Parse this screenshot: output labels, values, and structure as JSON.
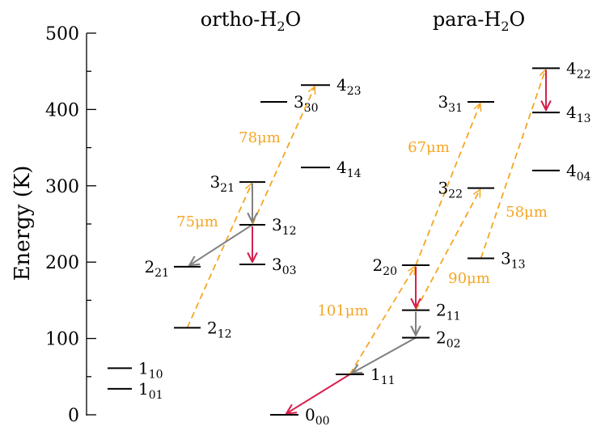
{
  "colors": {
    "radiative": "#f5a623",
    "red": "#d6204e",
    "gray": "#808080",
    "level": "#000000"
  },
  "axis": {
    "ylabel": "Energy (K)",
    "ticks": [
      {
        "value": 0,
        "label": "0"
      },
      {
        "value": 100,
        "label": "100"
      },
      {
        "value": 200,
        "label": "200"
      },
      {
        "value": 300,
        "label": "300"
      },
      {
        "value": 400,
        "label": "400"
      },
      {
        "value": 500,
        "label": "500"
      }
    ]
  },
  "titles": {
    "ortho": {
      "base": "ortho-H",
      "sub": "2",
      "end": "O"
    },
    "para": {
      "base": "para-H",
      "sub": "2",
      "end": "O"
    }
  },
  "levels": [
    {
      "id": "o110",
      "main": "1",
      "sub": "10",
      "energy": 61
    },
    {
      "id": "o101",
      "main": "1",
      "sub": "01",
      "energy": 34
    },
    {
      "id": "o221",
      "main": "2",
      "sub": "21",
      "energy": 194
    },
    {
      "id": "o212",
      "main": "2",
      "sub": "12",
      "energy": 114
    },
    {
      "id": "o321",
      "main": "3",
      "sub": "21",
      "energy": 305
    },
    {
      "id": "o312",
      "main": "3",
      "sub": "12",
      "energy": 249
    },
    {
      "id": "o303",
      "main": "3",
      "sub": "03",
      "energy": 197
    },
    {
      "id": "o330",
      "main": "3",
      "sub": "30",
      "energy": 410
    },
    {
      "id": "o423",
      "main": "4",
      "sub": "23",
      "energy": 432
    },
    {
      "id": "o414",
      "main": "4",
      "sub": "14",
      "energy": 324
    },
    {
      "id": "p000",
      "main": "0",
      "sub": "00",
      "energy": 0
    },
    {
      "id": "p111",
      "main": "1",
      "sub": "11",
      "energy": 53
    },
    {
      "id": "p202",
      "main": "2",
      "sub": "02",
      "energy": 101
    },
    {
      "id": "p211",
      "main": "2",
      "sub": "11",
      "energy": 137
    },
    {
      "id": "p220",
      "main": "2",
      "sub": "20",
      "energy": 196
    },
    {
      "id": "p322",
      "main": "3",
      "sub": "22",
      "energy": 297
    },
    {
      "id": "p331",
      "main": "3",
      "sub": "31",
      "energy": 410
    },
    {
      "id": "p313",
      "main": "3",
      "sub": "13",
      "energy": 205
    },
    {
      "id": "p422",
      "main": "4",
      "sub": "22",
      "energy": 454
    },
    {
      "id": "p413",
      "main": "4",
      "sub": "13",
      "energy": 396
    },
    {
      "id": "p404",
      "main": "4",
      "sub": "04",
      "energy": 320
    }
  ],
  "transitions": [
    {
      "from": "o212",
      "to": "o321",
      "kind": "pump",
      "label": "75μm"
    },
    {
      "from": "o312",
      "to": "o423",
      "kind": "pump",
      "label": "78μm"
    },
    {
      "from": "p111",
      "to": "p220",
      "kind": "pump",
      "label": "101μm"
    },
    {
      "from": "p220",
      "to": "p331",
      "kind": "pump",
      "label": "67μm"
    },
    {
      "from": "p211",
      "to": "p322",
      "kind": "pump",
      "label": "90μm"
    },
    {
      "from": "p313",
      "to": "p422",
      "kind": "pump",
      "label": "58μm"
    },
    {
      "from": "o321",
      "to": "o312",
      "kind": "gray"
    },
    {
      "from": "o312",
      "to": "o221",
      "kind": "gray"
    },
    {
      "from": "o312",
      "to": "o303",
      "kind": "red"
    },
    {
      "from": "p220",
      "to": "p211",
      "kind": "red"
    },
    {
      "from": "p211",
      "to": "p202",
      "kind": "gray"
    },
    {
      "from": "p202",
      "to": "p111",
      "kind": "gray"
    },
    {
      "from": "p111",
      "to": "p000",
      "kind": "red"
    },
    {
      "from": "p422",
      "to": "p413",
      "kind": "red"
    }
  ]
}
